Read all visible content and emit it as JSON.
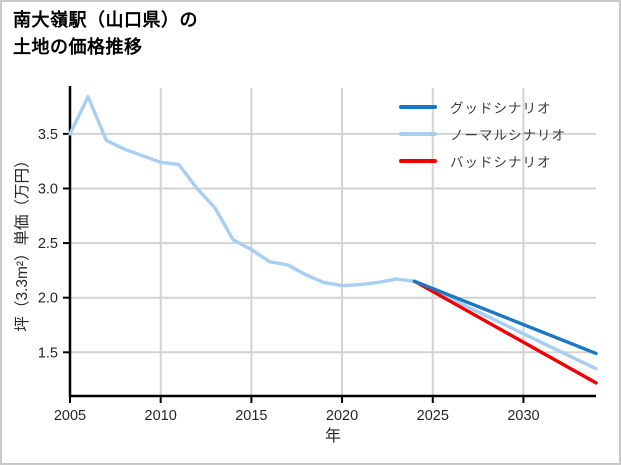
{
  "figure": {
    "background": "#ffffff",
    "border_color": "#c9c9c9"
  },
  "header": {
    "title_line1": "南大嶺駅（山口県）の",
    "title_line2": "土地の価格推移"
  },
  "chart_data": {
    "type": "line",
    "title": "南大嶺駅（山口県）の土地の価格推移",
    "xlabel": "年",
    "ylabel": "坪（3.3m²）単価（万円）",
    "xlim": [
      2005,
      2034
    ],
    "ylim": [
      1.1,
      3.92
    ],
    "x_ticks": [
      2005,
      2010,
      2015,
      2020,
      2025,
      2030
    ],
    "y_ticks": [
      1.5,
      2.0,
      2.5,
      3.0,
      3.5
    ],
    "grid": true,
    "grid_color": "#d3d3d3",
    "axis_color": "#000000",
    "tick_label_color": "#262626",
    "legend_position": "upper right",
    "series": [
      {
        "id": "good",
        "name": "グッドシナリオ",
        "color": "#1a77c4",
        "x": [
          2024,
          2034
        ],
        "values": [
          2.15,
          1.49
        ]
      },
      {
        "id": "normal",
        "name": "ノーマルシナリオ",
        "color": "#a8cef1",
        "x": [
          2005,
          2006,
          2007,
          2008,
          2009,
          2010,
          2011,
          2012,
          2013,
          2014,
          2015,
          2016,
          2017,
          2018,
          2019,
          2020,
          2021,
          2022,
          2023,
          2024,
          2034
        ],
        "values": [
          3.5,
          3.84,
          3.44,
          3.36,
          3.3,
          3.24,
          3.22,
          3.0,
          2.82,
          2.53,
          2.44,
          2.33,
          2.3,
          2.21,
          2.14,
          2.11,
          2.12,
          2.14,
          2.17,
          2.15,
          1.35
        ]
      },
      {
        "id": "bad",
        "name": "バッドシナリオ",
        "color": "#f20000",
        "x": [
          2024,
          2034
        ],
        "values": [
          2.15,
          1.22
        ]
      }
    ]
  }
}
